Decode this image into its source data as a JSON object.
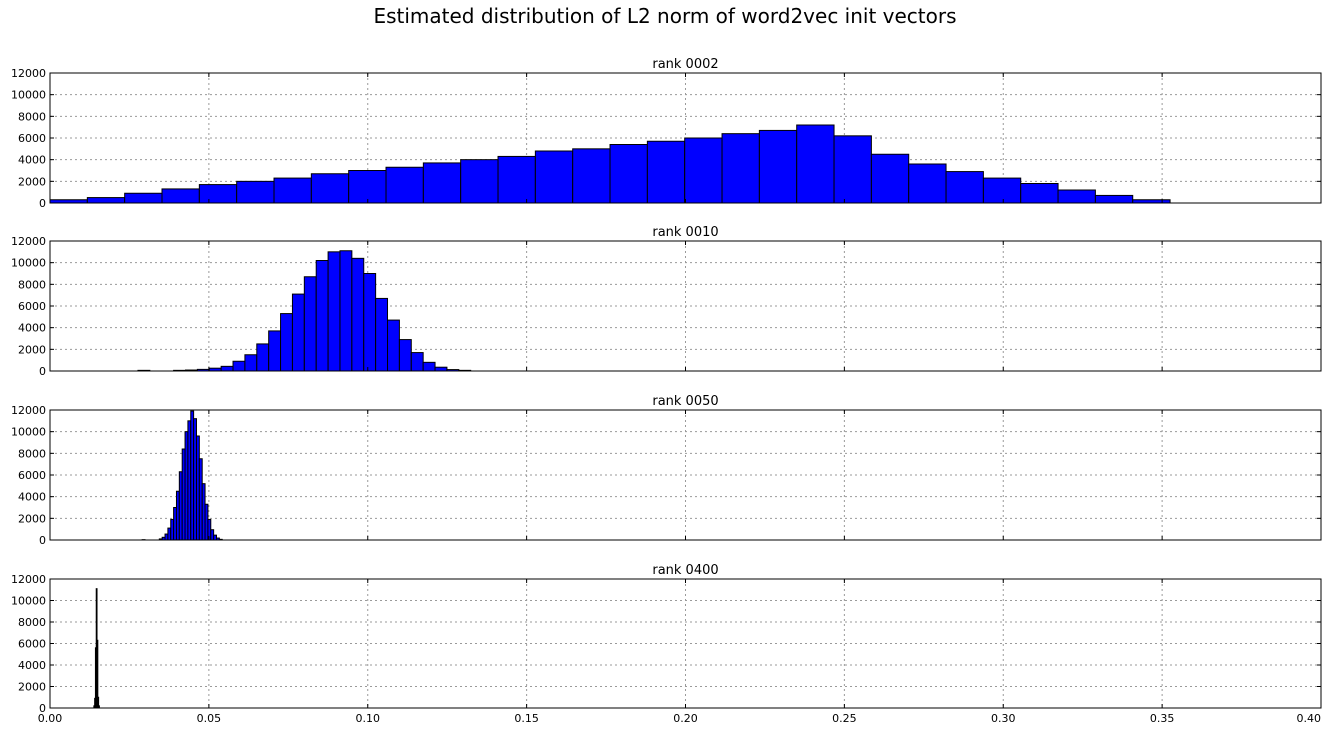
{
  "title": "Estimated distribution of L2 norm of word2vec init vectors",
  "colors": {
    "bar_fill": "#0000ff",
    "bar_edge": "#000000",
    "grid": "#9a9a9a",
    "axes": "#000000"
  },
  "chart_data": [
    {
      "type": "bar",
      "title": "rank 0002",
      "xlabel": "",
      "ylabel": "",
      "xlim": [
        0,
        0.4
      ],
      "ylim": [
        0,
        12000
      ],
      "grid": true,
      "xticks": [
        "0.00",
        "0.05",
        "0.10",
        "0.15",
        "0.20",
        "0.25",
        "0.30",
        "0.35",
        "0.40"
      ],
      "yticks": [
        "0",
        "2000",
        "4000",
        "6000",
        "8000",
        "10000",
        "12000"
      ],
      "show_xticklabels": false,
      "bin_start": 0.0,
      "bin_width": 0.01175,
      "values": [
        300,
        500,
        900,
        1300,
        1700,
        2000,
        2300,
        2700,
        3000,
        3300,
        3700,
        4000,
        4300,
        4800,
        5000,
        5400,
        5700,
        6000,
        6400,
        6700,
        7200,
        6200,
        4500,
        3600,
        2900,
        2300,
        1800,
        1200,
        700,
        300
      ]
    },
    {
      "type": "bar",
      "title": "rank 0010",
      "xlabel": "",
      "ylabel": "",
      "xlim": [
        0,
        0.4
      ],
      "ylim": [
        0,
        12000
      ],
      "grid": true,
      "xticks": [
        "0.00",
        "0.05",
        "0.10",
        "0.15",
        "0.20",
        "0.25",
        "0.30",
        "0.35",
        "0.40"
      ],
      "yticks": [
        "0",
        "2000",
        "4000",
        "6000",
        "8000",
        "10000",
        "12000"
      ],
      "show_xticklabels": false,
      "bin_start": 0.02768,
      "bin_width": 0.00374,
      "values": [
        60,
        0,
        0,
        60,
        90,
        150,
        260,
        430,
        900,
        1500,
        2500,
        3700,
        5300,
        7100,
        8700,
        10200,
        11000,
        11100,
        10400,
        9000,
        6700,
        4700,
        2900,
        1700,
        800,
        350,
        130,
        60
      ]
    },
    {
      "type": "bar",
      "title": "rank 0050",
      "xlabel": "",
      "ylabel": "",
      "xlim": [
        0,
        0.4
      ],
      "ylim": [
        0,
        12000
      ],
      "grid": true,
      "xticks": [
        "0.00",
        "0.05",
        "0.10",
        "0.15",
        "0.20",
        "0.25",
        "0.30",
        "0.35",
        "0.40"
      ],
      "yticks": [
        "0",
        "2000",
        "4000",
        "6000",
        "8000",
        "10000",
        "12000"
      ],
      "show_xticklabels": false,
      "bin_start": 0.029,
      "bin_width": 0.0009,
      "values": [
        30,
        0,
        0,
        0,
        0,
        0,
        100,
        250,
        550,
        1100,
        1900,
        3000,
        4500,
        6300,
        8400,
        10000,
        11000,
        11900,
        11200,
        9600,
        7500,
        5200,
        3300,
        1900,
        950,
        450,
        180,
        60
      ]
    },
    {
      "type": "bar",
      "title": "rank 0400",
      "xlabel": "",
      "ylabel": "",
      "xlim": [
        0,
        0.4
      ],
      "ylim": [
        0,
        12000
      ],
      "grid": true,
      "xticks": [
        "0.00",
        "0.05",
        "0.10",
        "0.15",
        "0.20",
        "0.25",
        "0.30",
        "0.35",
        "0.40"
      ],
      "yticks": [
        "0",
        "2000",
        "4000",
        "6000",
        "8000",
        "10000",
        "12000"
      ],
      "show_xticklabels": true,
      "bin_start": 0.0138,
      "bin_width": 0.00025,
      "values": [
        200,
        900,
        5600,
        11100,
        6300,
        1000,
        200
      ]
    }
  ]
}
